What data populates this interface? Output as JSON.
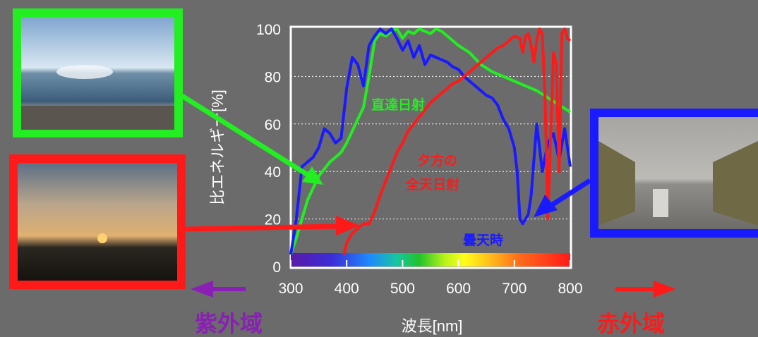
{
  "chart_data": {
    "type": "line",
    "xlabel": "波長[nm]",
    "ylabel": "比エネルギー[%]",
    "xlim": [
      300,
      800
    ],
    "ylim": [
      0,
      100
    ],
    "x_ticks": [
      "300",
      "400",
      "500",
      "600",
      "700",
      "800"
    ],
    "y_ticks": [
      "0",
      "20",
      "40",
      "60",
      "80",
      "100"
    ],
    "grid": "horizontal-dotted",
    "spectrum_bar": "visible",
    "series": [
      {
        "name": "直達日射",
        "color": "#22ee22",
        "x": [
          300,
          310,
          320,
          330,
          340,
          350,
          360,
          370,
          380,
          390,
          400,
          410,
          420,
          430,
          440,
          450,
          460,
          470,
          480,
          490,
          500,
          510,
          520,
          530,
          540,
          550,
          560,
          570,
          580,
          590,
          600,
          620,
          640,
          660,
          680,
          700,
          720,
          740,
          760,
          780,
          800
        ],
        "y": [
          5,
          12,
          20,
          28,
          33,
          38,
          41,
          44,
          46,
          48,
          52,
          57,
          62,
          67,
          80,
          95,
          98,
          97,
          99,
          100,
          96,
          99,
          98,
          100,
          99,
          98,
          100,
          99,
          97,
          95,
          93,
          90,
          85,
          82,
          80,
          78,
          76,
          74,
          71,
          68,
          65
        ]
      },
      {
        "name": "夕方の全天日射",
        "color": "#ff1a1a",
        "x": [
          395,
          400,
          410,
          420,
          430,
          440,
          450,
          460,
          470,
          480,
          490,
          500,
          510,
          520,
          530,
          540,
          550,
          560,
          570,
          580,
          590,
          600,
          610,
          620,
          630,
          640,
          650,
          660,
          670,
          680,
          690,
          700,
          710,
          715,
          720,
          725,
          730,
          735,
          740,
          745,
          750,
          755,
          760,
          765,
          770,
          775,
          780,
          785,
          790,
          795,
          800
        ],
        "y": [
          5,
          10,
          14,
          16,
          18,
          18,
          23,
          30,
          36,
          42,
          48,
          52,
          57,
          60,
          63,
          66,
          69,
          71,
          73,
          75,
          77,
          78,
          80,
          82,
          84,
          86,
          88,
          90,
          92,
          93,
          95,
          97,
          96,
          90,
          97,
          98,
          93,
          86,
          95,
          100,
          98,
          70,
          20,
          55,
          90,
          85,
          40,
          98,
          100,
          96,
          95
        ]
      },
      {
        "name": "曇天時",
        "color": "#1a1aff",
        "x": [
          300,
          310,
          320,
          330,
          340,
          350,
          360,
          370,
          380,
          390,
          400,
          410,
          420,
          430,
          440,
          450,
          460,
          470,
          480,
          490,
          500,
          510,
          520,
          530,
          540,
          550,
          560,
          570,
          580,
          590,
          600,
          610,
          620,
          630,
          640,
          650,
          660,
          670,
          680,
          690,
          700,
          705,
          710,
          715,
          720,
          725,
          730,
          740,
          750,
          760,
          770,
          780,
          790,
          800
        ],
        "y": [
          5,
          20,
          42,
          44,
          46,
          50,
          58,
          56,
          52,
          54,
          75,
          88,
          85,
          76,
          93,
          97,
          100,
          98,
          100,
          96,
          91,
          95,
          88,
          93,
          85,
          89,
          88,
          87,
          86,
          84,
          83,
          80,
          78,
          76,
          74,
          72,
          71,
          68,
          62,
          58,
          50,
          40,
          20,
          18,
          20,
          22,
          30,
          60,
          40,
          52,
          56,
          45,
          58,
          42
        ]
      }
    ],
    "annotations": [
      "直達日射",
      "夕方の",
      "全天日射",
      "曇天時"
    ]
  },
  "labels": {
    "uv": "紫外域",
    "ir": "赤外域",
    "series_direct": "直達日射",
    "series_evening_1": "夕方の",
    "series_evening_2": "全天日射",
    "series_cloudy": "曇天時"
  },
  "photos": [
    {
      "name": "sea-photo",
      "frame_color": "#22ee22"
    },
    {
      "name": "sunset-photo",
      "frame_color": "#ff1a1a"
    },
    {
      "name": "road-photo",
      "frame_color": "#1a1aff"
    }
  ]
}
